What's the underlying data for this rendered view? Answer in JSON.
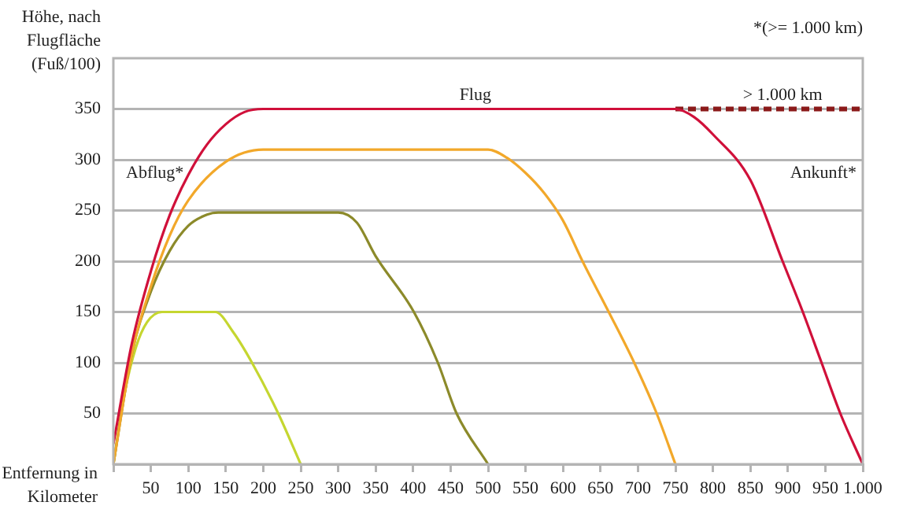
{
  "chart_data": {
    "type": "line",
    "xlabel": "Entfernung in Kilometer",
    "ylabel": "Höhe, nach Flugfläche (Fuß/100)",
    "xlim": [
      0,
      1000
    ],
    "xticks": [
      {
        "value": 0,
        "label": null
      },
      50,
      100,
      150,
      200,
      250,
      300,
      350,
      400,
      450,
      500,
      550,
      600,
      650,
      700,
      750,
      800,
      850,
      900,
      950,
      {
        "value": 1000,
        "label": "1.000"
      }
    ],
    "ylim": [
      0,
      400
    ],
    "yticks": [
      50,
      100,
      150,
      200,
      250,
      300,
      350
    ],
    "grid": "y",
    "marker": "none",
    "line_style": "solid",
    "series": [
      {
        "color": "#d0103a",
        "x": [
          0,
          25,
          50,
          75,
          100,
          125,
          150,
          175,
          200,
          750,
          775,
          800,
          850,
          893,
          920,
          945,
          970,
          1000
        ],
        "values": [
          20,
          120,
          190,
          245,
          285,
          315,
          335,
          347,
          350,
          350,
          342,
          325,
          280,
          200,
          150,
          100,
          50,
          0
        ]
      },
      {
        "color": "#f2a82a",
        "x": [
          0,
          25,
          50,
          75,
          100,
          150,
          200,
          500,
          525,
          550,
          575,
          600,
          626,
          661,
          695,
          725,
          750
        ],
        "values": [
          0,
          110,
          175,
          225,
          260,
          298,
          310,
          310,
          302,
          287,
          267,
          240,
          200,
          150,
          100,
          50,
          0
        ]
      },
      {
        "color": "#8c8a2a",
        "x": [
          0,
          25,
          50,
          75,
          100,
          125,
          140,
          300,
          325,
          350,
          401,
          433,
          458,
          500
        ],
        "values": [
          0,
          110,
          170,
          210,
          235,
          246,
          248,
          248,
          238,
          205,
          150,
          100,
          50,
          0
        ]
      },
      {
        "color": "#c5d630",
        "x": [
          0,
          15,
          30,
          45,
          65,
          136,
          160,
          185,
          220,
          250
        ],
        "values": [
          0,
          70,
          115,
          140,
          150,
          150,
          130,
          100,
          50,
          0
        ]
      },
      {
        "color": "#8b1a1a",
        "line_style": "dashed",
        "x": [
          750,
          1000
        ],
        "values": [
          350,
          350
        ]
      }
    ],
    "annotations": [
      {
        "text": "Flug",
        "x": 483,
        "y": 350
      },
      {
        "text": "> 1.000 km",
        "x": 893,
        "y": 350
      },
      "Abflug*",
      "Ankunft*",
      "*(>= 1.000 km)"
    ]
  }
}
